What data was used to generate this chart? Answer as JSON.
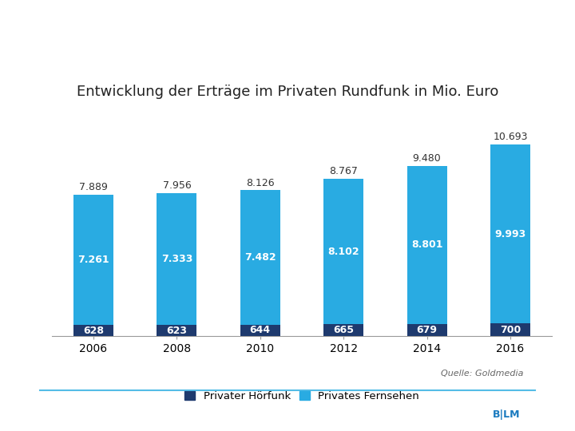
{
  "title": "Entwicklung der Erträge im Privaten Rundfunk in Mio. Euro",
  "years": [
    "2006",
    "2008",
    "2010",
    "2012",
    "2014",
    "2016"
  ],
  "hoerfunk": [
    628,
    623,
    644,
    665,
    679,
    700
  ],
  "fernsehen": [
    7261,
    7333,
    7482,
    8102,
    8801,
    9993
  ],
  "totals": [
    7889,
    7956,
    8126,
    8767,
    9480,
    10693
  ],
  "color_hoerfunk": "#1e3a6e",
  "color_fernsehen": "#29abe2",
  "background_color": "#ffffff",
  "legend_hoerfunk": "Privater Hörfunk",
  "legend_fernsehen": "Privates Fernsehen",
  "source_text": "Quelle: Goldmedia",
  "bar_width": 0.48,
  "ylim": [
    0,
    12000
  ],
  "title_fontsize": 13,
  "label_fontsize": 9,
  "tick_fontsize": 10,
  "legend_fontsize": 9.5,
  "source_fontsize": 8,
  "line_color": "#29abe2",
  "total_label_color": "#333333",
  "axis_color": "#999999"
}
